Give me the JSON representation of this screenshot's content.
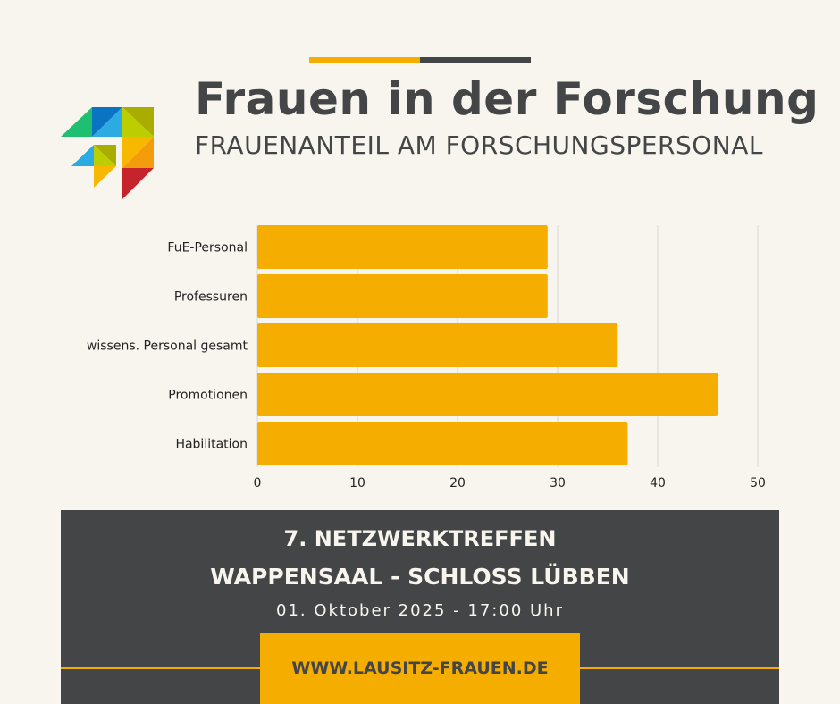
{
  "header": {
    "title": "Frauen in der Forschung",
    "subtitle": "FRAUENANTEIL AM FORSCHUNGSPERSONAL"
  },
  "colors": {
    "accent": "#f5ad00",
    "dark": "#444546",
    "background": "#f8f5ef"
  },
  "chart_data": {
    "type": "bar",
    "orientation": "horizontal",
    "categories": [
      "FuE-Personal",
      "Professuren",
      "wissens. Personal gesamt",
      "Promotionen",
      "Habilitation"
    ],
    "values": [
      29,
      29,
      36,
      46,
      37
    ],
    "xlim": [
      0,
      50
    ],
    "xticks": [
      0,
      10,
      20,
      30,
      40,
      50
    ],
    "grid": true,
    "bar_color": "#f5ad00"
  },
  "event": {
    "line1": "7. NETZWERKTREFFEN",
    "line2": "WAPPENSAAL - SCHLOSS LÜBBEN",
    "line3": "01. Oktober 2025 - 17:00 Uhr",
    "website": "WWW.LAUSITZ-FRAUEN.DE"
  }
}
